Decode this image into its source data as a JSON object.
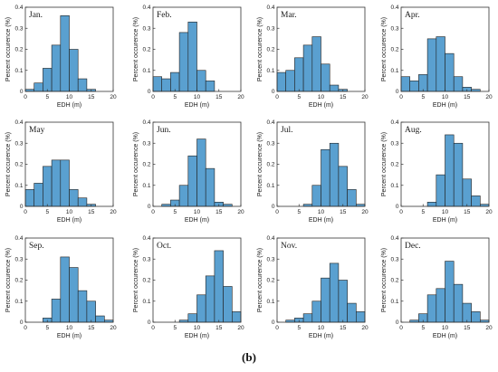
{
  "caption": "(b)",
  "colors": {
    "bar_fill": "#5aa0d0",
    "bar_edge": "#202020",
    "axis": "#333333"
  },
  "chart_data": [
    {
      "type": "bar",
      "title": "Jan.",
      "xlabel": "EDH (m)",
      "ylabel": "Percent occurence (%)",
      "xlim": [
        0,
        20
      ],
      "ylim": [
        0,
        0.4
      ],
      "xticks": [
        0,
        5,
        10,
        15,
        20
      ],
      "yticks": [
        0,
        0.1,
        0.2,
        0.3,
        0.4
      ],
      "bin_edges": [
        0,
        2,
        4,
        6,
        8,
        10,
        12,
        14,
        16,
        18,
        20
      ],
      "values": [
        0.01,
        0.04,
        0.11,
        0.22,
        0.36,
        0.2,
        0.06,
        0.01,
        0.0,
        0.0
      ]
    },
    {
      "type": "bar",
      "title": "Feb.",
      "xlabel": "EDH (m)",
      "ylabel": "Percent occurence (%)",
      "xlim": [
        0,
        20
      ],
      "ylim": [
        0,
        0.4
      ],
      "xticks": [
        0,
        5,
        10,
        15,
        20
      ],
      "yticks": [
        0,
        0.1,
        0.2,
        0.3,
        0.4
      ],
      "bin_edges": [
        0,
        2,
        4,
        6,
        8,
        10,
        12,
        14,
        16,
        18,
        20
      ],
      "values": [
        0.07,
        0.06,
        0.09,
        0.28,
        0.33,
        0.1,
        0.05,
        0.0,
        0.0,
        0.0
      ]
    },
    {
      "type": "bar",
      "title": "Mar.",
      "xlabel": "EDH (m)",
      "ylabel": "Percent occurence (%)",
      "xlim": [
        0,
        20
      ],
      "ylim": [
        0,
        0.4
      ],
      "xticks": [
        0,
        5,
        10,
        15,
        20
      ],
      "yticks": [
        0,
        0.1,
        0.2,
        0.3,
        0.4
      ],
      "bin_edges": [
        0,
        2,
        4,
        6,
        8,
        10,
        12,
        14,
        16,
        18,
        20
      ],
      "values": [
        0.09,
        0.1,
        0.16,
        0.22,
        0.26,
        0.13,
        0.03,
        0.01,
        0.0,
        0.0
      ]
    },
    {
      "type": "bar",
      "title": "Apr.",
      "xlabel": "EDH (m)",
      "ylabel": "Percent occurence (%)",
      "xlim": [
        0,
        20
      ],
      "ylim": [
        0,
        0.4
      ],
      "xticks": [
        0,
        5,
        10,
        15,
        20
      ],
      "yticks": [
        0,
        0.1,
        0.2,
        0.3,
        0.4
      ],
      "bin_edges": [
        0,
        2,
        4,
        6,
        8,
        10,
        12,
        14,
        16,
        18,
        20
      ],
      "values": [
        0.07,
        0.05,
        0.08,
        0.25,
        0.26,
        0.18,
        0.07,
        0.02,
        0.01,
        0.0
      ]
    },
    {
      "type": "bar",
      "title": "May",
      "xlabel": "EDH (m)",
      "ylabel": "Percent occurence (%)",
      "xlim": [
        0,
        20
      ],
      "ylim": [
        0,
        0.4
      ],
      "xticks": [
        0,
        5,
        10,
        15,
        20
      ],
      "yticks": [
        0,
        0.1,
        0.2,
        0.3,
        0.4
      ],
      "bin_edges": [
        0,
        2,
        4,
        6,
        8,
        10,
        12,
        14,
        16,
        18,
        20
      ],
      "values": [
        0.08,
        0.11,
        0.19,
        0.22,
        0.22,
        0.08,
        0.04,
        0.01,
        0.0,
        0.0
      ]
    },
    {
      "type": "bar",
      "title": "Jun.",
      "xlabel": "EDH (m)",
      "ylabel": "Percent occurence (%)",
      "xlim": [
        0,
        20
      ],
      "ylim": [
        0,
        0.4
      ],
      "xticks": [
        0,
        5,
        10,
        15,
        20
      ],
      "yticks": [
        0,
        0.1,
        0.2,
        0.3,
        0.4
      ],
      "bin_edges": [
        0,
        2,
        4,
        6,
        8,
        10,
        12,
        14,
        16,
        18,
        20
      ],
      "values": [
        0.0,
        0.01,
        0.03,
        0.1,
        0.24,
        0.32,
        0.18,
        0.02,
        0.01,
        0.0
      ]
    },
    {
      "type": "bar",
      "title": "Jul.",
      "xlabel": "EDH (m)",
      "ylabel": "Percent occurence (%)",
      "xlim": [
        0,
        20
      ],
      "ylim": [
        0,
        0.4
      ],
      "xticks": [
        0,
        5,
        10,
        15,
        20
      ],
      "yticks": [
        0,
        0.1,
        0.2,
        0.3,
        0.4
      ],
      "bin_edges": [
        0,
        2,
        4,
        6,
        8,
        10,
        12,
        14,
        16,
        18,
        20
      ],
      "values": [
        0.0,
        0.0,
        0.0,
        0.01,
        0.1,
        0.27,
        0.3,
        0.19,
        0.08,
        0.01
      ]
    },
    {
      "type": "bar",
      "title": "Aug.",
      "xlabel": "EDH (m)",
      "ylabel": "Percent occurence (%)",
      "xlim": [
        0,
        20
      ],
      "ylim": [
        0,
        0.4
      ],
      "xticks": [
        0,
        5,
        10,
        15,
        20
      ],
      "yticks": [
        0,
        0.1,
        0.2,
        0.3,
        0.4
      ],
      "bin_edges": [
        0,
        2,
        4,
        6,
        8,
        10,
        12,
        14,
        16,
        18,
        20
      ],
      "values": [
        0.0,
        0.0,
        0.0,
        0.02,
        0.15,
        0.34,
        0.3,
        0.13,
        0.05,
        0.01
      ]
    },
    {
      "type": "bar",
      "title": "Sep.",
      "xlabel": "EDH (m)",
      "ylabel": "Percent occurence (%)",
      "xlim": [
        0,
        20
      ],
      "ylim": [
        0,
        0.4
      ],
      "xticks": [
        0,
        5,
        10,
        15,
        20
      ],
      "yticks": [
        0,
        0.1,
        0.2,
        0.3,
        0.4
      ],
      "bin_edges": [
        0,
        2,
        4,
        6,
        8,
        10,
        12,
        14,
        16,
        18,
        20
      ],
      "values": [
        0.0,
        0.0,
        0.02,
        0.11,
        0.31,
        0.26,
        0.15,
        0.1,
        0.03,
        0.01
      ]
    },
    {
      "type": "bar",
      "title": "Oct.",
      "xlabel": "EDH (m)",
      "ylabel": "Percent occurence (%)",
      "xlim": [
        0,
        20
      ],
      "ylim": [
        0,
        0.4
      ],
      "xticks": [
        0,
        5,
        10,
        15,
        20
      ],
      "yticks": [
        0,
        0.1,
        0.2,
        0.3,
        0.4
      ],
      "bin_edges": [
        0,
        2,
        4,
        6,
        8,
        10,
        12,
        14,
        16,
        18,
        20
      ],
      "values": [
        0.0,
        0.0,
        0.0,
        0.01,
        0.04,
        0.13,
        0.22,
        0.34,
        0.17,
        0.05
      ]
    },
    {
      "type": "bar",
      "title": "Nov.",
      "xlabel": "EDH (m)",
      "ylabel": "Percent occurence (%)",
      "xlim": [
        0,
        20
      ],
      "ylim": [
        0,
        0.4
      ],
      "xticks": [
        0,
        5,
        10,
        15,
        20
      ],
      "yticks": [
        0,
        0.1,
        0.2,
        0.3,
        0.4
      ],
      "bin_edges": [
        0,
        2,
        4,
        6,
        8,
        10,
        12,
        14,
        16,
        18,
        20
      ],
      "values": [
        0.0,
        0.01,
        0.02,
        0.04,
        0.1,
        0.21,
        0.28,
        0.2,
        0.09,
        0.05
      ]
    },
    {
      "type": "bar",
      "title": "Dec.",
      "xlabel": "EDH (m)",
      "ylabel": "Percent occurence (%)",
      "xlim": [
        0,
        20
      ],
      "ylim": [
        0,
        0.4
      ],
      "xticks": [
        0,
        5,
        10,
        15,
        20
      ],
      "yticks": [
        0,
        0.1,
        0.2,
        0.3,
        0.4
      ],
      "bin_edges": [
        0,
        2,
        4,
        6,
        8,
        10,
        12,
        14,
        16,
        18,
        20
      ],
      "values": [
        0.0,
        0.01,
        0.04,
        0.13,
        0.16,
        0.29,
        0.18,
        0.09,
        0.05,
        0.01
      ]
    }
  ]
}
